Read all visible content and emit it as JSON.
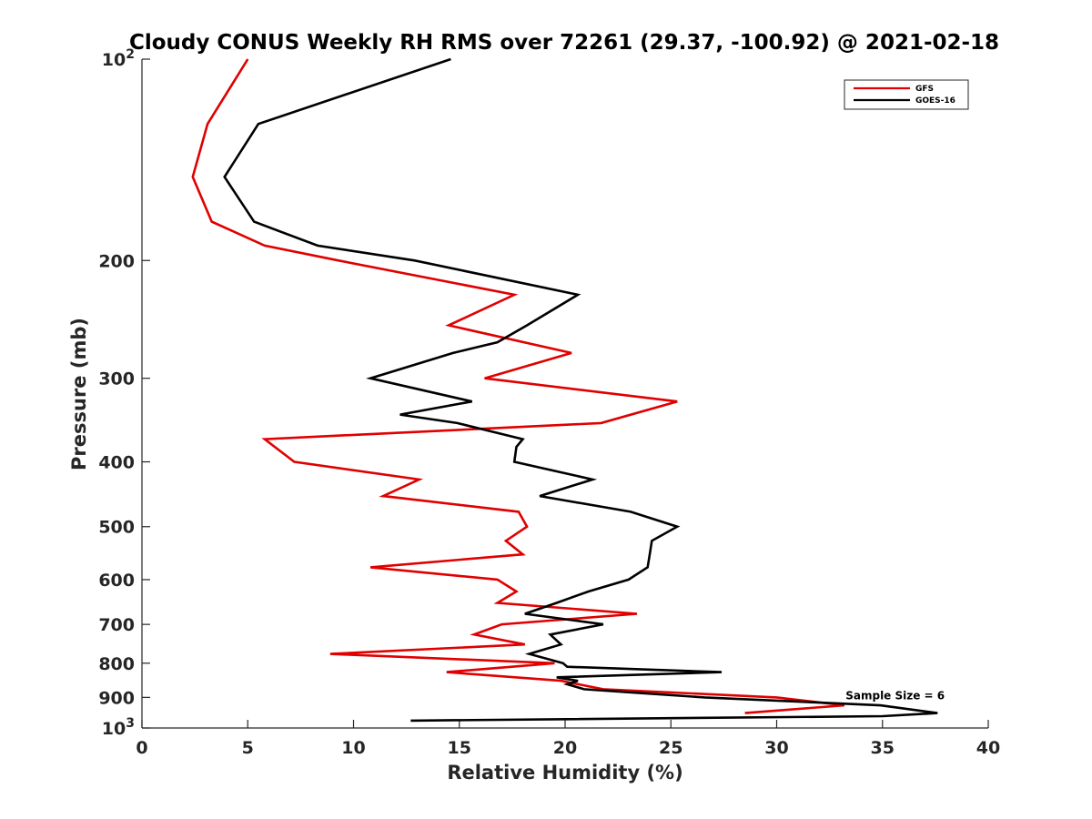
{
  "chart_data": {
    "type": "line",
    "title": "Cloudy CONUS Weekly RH RMS over 72261 (29.37, -100.92) @ 2021-02-18",
    "xlabel": "Relative Humidity (%)",
    "ylabel": "Pressure (mb)",
    "xlim": [
      0,
      40
    ],
    "ylim": [
      100,
      1000
    ],
    "y_scale": "log",
    "y_reversed": true,
    "grid": false,
    "legend_position": "top-right",
    "x_ticks": [
      0,
      5,
      10,
      15,
      20,
      25,
      30,
      35,
      40
    ],
    "x_tick_labels": [
      "0",
      "5",
      "10",
      "15",
      "20",
      "25",
      "30",
      "35",
      "40"
    ],
    "y_ticks": [
      100,
      200,
      300,
      400,
      500,
      600,
      700,
      800,
      900,
      1000
    ],
    "y_tick_labels": [
      {
        "base": "10",
        "exp": "2"
      },
      {
        "base": "200",
        "exp": ""
      },
      {
        "base": "300",
        "exp": ""
      },
      {
        "base": "400",
        "exp": ""
      },
      {
        "base": "500",
        "exp": ""
      },
      {
        "base": "600",
        "exp": ""
      },
      {
        "base": "700",
        "exp": ""
      },
      {
        "base": "800",
        "exp": ""
      },
      {
        "base": "900",
        "exp": ""
      },
      {
        "base": "10",
        "exp": "3"
      }
    ],
    "series": [
      {
        "name": "GFS",
        "color": "#e00000",
        "points": [
          [
            5.0,
            100
          ],
          [
            3.1,
            125
          ],
          [
            2.4,
            150
          ],
          [
            3.3,
            175
          ],
          [
            5.8,
            190
          ],
          [
            9.3,
            200
          ],
          [
            17.6,
            225
          ],
          [
            14.5,
            250
          ],
          [
            20.3,
            275
          ],
          [
            16.2,
            300
          ],
          [
            25.3,
            325
          ],
          [
            21.7,
            350
          ],
          [
            5.8,
            370
          ],
          [
            7.2,
            400
          ],
          [
            13.1,
            425
          ],
          [
            11.4,
            450
          ],
          [
            17.8,
            475
          ],
          [
            18.2,
            500
          ],
          [
            17.2,
            525
          ],
          [
            18.0,
            550
          ],
          [
            10.8,
            575
          ],
          [
            16.8,
            600
          ],
          [
            17.7,
            625
          ],
          [
            16.8,
            650
          ],
          [
            23.4,
            675
          ],
          [
            17.0,
            700
          ],
          [
            15.7,
            725
          ],
          [
            18.1,
            750
          ],
          [
            8.9,
            775
          ],
          [
            19.5,
            800
          ],
          [
            14.4,
            825
          ],
          [
            19.8,
            850
          ],
          [
            21.8,
            875
          ],
          [
            30.0,
            900
          ],
          [
            33.2,
            925
          ],
          [
            28.5,
            950
          ]
        ]
      },
      {
        "name": "GOES-16",
        "color": "#000000",
        "points": [
          [
            14.6,
            100
          ],
          [
            5.5,
            125
          ],
          [
            3.9,
            150
          ],
          [
            5.3,
            175
          ],
          [
            8.3,
            190
          ],
          [
            12.9,
            200
          ],
          [
            20.6,
            225
          ],
          [
            18.2,
            250
          ],
          [
            16.8,
            265
          ],
          [
            14.7,
            275
          ],
          [
            10.8,
            300
          ],
          [
            15.6,
            325
          ],
          [
            12.2,
            340
          ],
          [
            14.9,
            350
          ],
          [
            18.0,
            370
          ],
          [
            17.7,
            380
          ],
          [
            17.6,
            400
          ],
          [
            21.3,
            425
          ],
          [
            18.8,
            450
          ],
          [
            23.1,
            475
          ],
          [
            25.3,
            500
          ],
          [
            24.1,
            525
          ],
          [
            24.0,
            550
          ],
          [
            23.9,
            575
          ],
          [
            23.0,
            600
          ],
          [
            21.1,
            625
          ],
          [
            19.6,
            650
          ],
          [
            18.1,
            675
          ],
          [
            21.8,
            700
          ],
          [
            19.3,
            725
          ],
          [
            19.8,
            750
          ],
          [
            18.3,
            775
          ],
          [
            19.9,
            800
          ],
          [
            20.1,
            810
          ],
          [
            27.4,
            825
          ],
          [
            19.6,
            840
          ],
          [
            20.6,
            850
          ],
          [
            20.1,
            860
          ],
          [
            20.9,
            875
          ],
          [
            26.6,
            900
          ],
          [
            34.9,
            925
          ],
          [
            37.6,
            950
          ],
          [
            35.0,
            960
          ],
          [
            12.7,
            975
          ]
        ]
      }
    ],
    "annotations": [
      {
        "text": "Sample Size = 6",
        "x": 35.6,
        "y": 906
      }
    ]
  }
}
